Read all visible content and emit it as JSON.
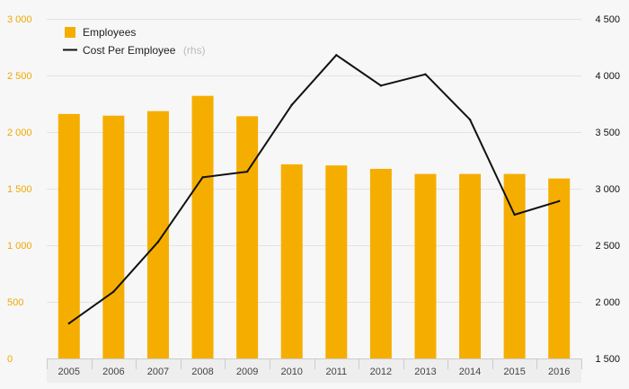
{
  "chart_data": {
    "type": "bar",
    "categories": [
      "2005",
      "2006",
      "2007",
      "2008",
      "2009",
      "2010",
      "2011",
      "2012",
      "2013",
      "2014",
      "2015",
      "2016"
    ],
    "series": [
      {
        "name": "Employees",
        "type": "bar",
        "axis": "left",
        "color": "#f5ae00",
        "values": [
          2160,
          2145,
          2185,
          2320,
          2140,
          1715,
          1705,
          1675,
          1630,
          1630,
          1630,
          1590
        ]
      },
      {
        "name": "Cost Per Employee",
        "name_suffix": "(rhs)",
        "type": "line",
        "axis": "right",
        "color": "#111111",
        "values": [
          1810,
          2090,
          2530,
          3100,
          3150,
          3740,
          4180,
          3910,
          4010,
          3610,
          2770,
          2890
        ]
      }
    ],
    "y_left": {
      "lim": [
        0,
        3000
      ],
      "ticks": [
        0,
        500,
        1000,
        1500,
        2000,
        2500,
        3000
      ],
      "tick_labels": [
        "0",
        "500",
        "1 000",
        "1 500",
        "2 000",
        "2 500",
        "3 000"
      ]
    },
    "y_right": {
      "lim": [
        1500,
        4500
      ],
      "ticks": [
        1500,
        2000,
        2500,
        3000,
        3500,
        4000,
        4500
      ],
      "tick_labels": [
        "1 500",
        "2 000",
        "2 500",
        "3 000",
        "3 500",
        "4 000",
        "4 500"
      ]
    },
    "grid": true,
    "legend_position": "top-left",
    "title": "",
    "xlabel": "",
    "ylabel": ""
  }
}
